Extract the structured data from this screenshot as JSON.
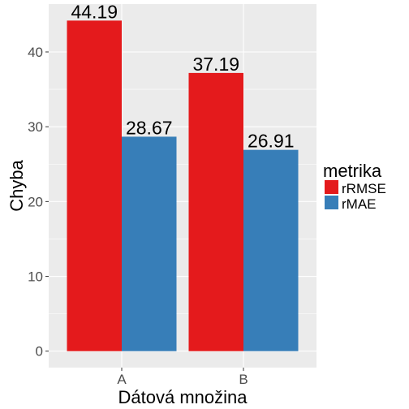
{
  "chart_data": {
    "type": "bar",
    "xlabel": "Dátová množina",
    "ylabel": "Chyba",
    "categories": [
      "A",
      "B"
    ],
    "series": [
      {
        "name": "rRMSE",
        "values": [
          44.19,
          37.19
        ],
        "labels": [
          "44.19",
          "37.19"
        ],
        "color": "#e41a1c"
      },
      {
        "name": "rMAE",
        "values": [
          28.67,
          26.91
        ],
        "labels": [
          "28.67",
          "26.91"
        ],
        "color": "#377eb8"
      }
    ],
    "ylim": [
      -2.2,
      46.4
    ],
    "yticks": [
      0,
      10,
      20,
      30,
      40
    ],
    "ytick_labels": [
      "0",
      "10",
      "20",
      "30",
      "40"
    ],
    "grid": true,
    "legend": {
      "title": "metrika",
      "placement": "right"
    },
    "panel_background": "#ebebeb",
    "grid_color": "#ffffff"
  }
}
